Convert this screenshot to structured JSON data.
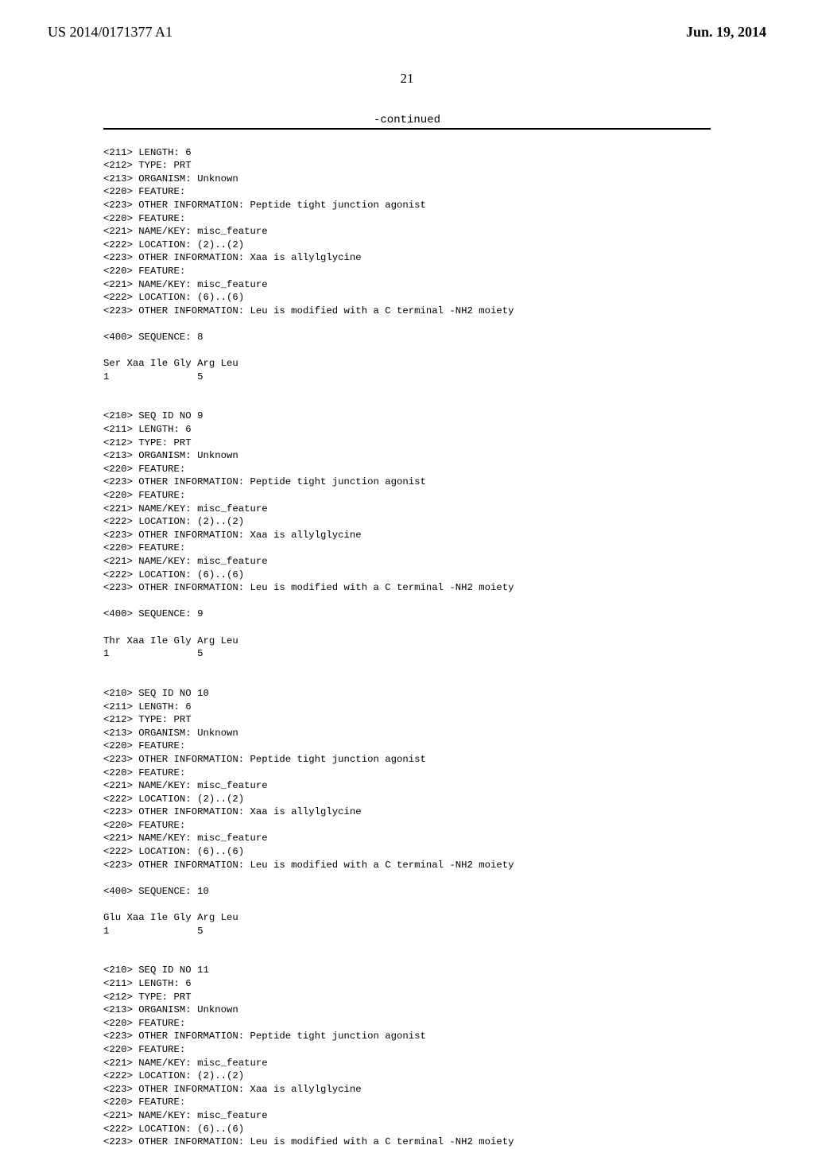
{
  "header": {
    "pub_number": "US 2014/0171377 A1",
    "pub_date": "Jun. 19, 2014",
    "page_number": "21"
  },
  "continued_label": "-continued",
  "seq8": {
    "l01": "<211> LENGTH: 6",
    "l02": "<212> TYPE: PRT",
    "l03": "<213> ORGANISM: Unknown",
    "l04": "<220> FEATURE:",
    "l05": "<223> OTHER INFORMATION: Peptide tight junction agonist",
    "l06": "<220> FEATURE:",
    "l07": "<221> NAME/KEY: misc_feature",
    "l08": "<222> LOCATION: (2)..(2)",
    "l09": "<223> OTHER INFORMATION: Xaa is allylglycine",
    "l10": "<220> FEATURE:",
    "l11": "<221> NAME/KEY: misc_feature",
    "l12": "<222> LOCATION: (6)..(6)",
    "l13": "<223> OTHER INFORMATION: Leu is modified with a C terminal -NH2 moiety",
    "l14": "<400> SEQUENCE: 8",
    "seq_line": "Ser Xaa Ile Gly Arg Leu",
    "num_line": "1               5"
  },
  "seq9": {
    "l00": "<210> SEQ ID NO 9",
    "l01": "<211> LENGTH: 6",
    "l02": "<212> TYPE: PRT",
    "l03": "<213> ORGANISM: Unknown",
    "l04": "<220> FEATURE:",
    "l05": "<223> OTHER INFORMATION: Peptide tight junction agonist",
    "l06": "<220> FEATURE:",
    "l07": "<221> NAME/KEY: misc_feature",
    "l08": "<222> LOCATION: (2)..(2)",
    "l09": "<223> OTHER INFORMATION: Xaa is allylglycine",
    "l10": "<220> FEATURE:",
    "l11": "<221> NAME/KEY: misc_feature",
    "l12": "<222> LOCATION: (6)..(6)",
    "l13": "<223> OTHER INFORMATION: Leu is modified with a C terminal -NH2 moiety",
    "l14": "<400> SEQUENCE: 9",
    "seq_line": "Thr Xaa Ile Gly Arg Leu",
    "num_line": "1               5"
  },
  "seq10": {
    "l00": "<210> SEQ ID NO 10",
    "l01": "<211> LENGTH: 6",
    "l02": "<212> TYPE: PRT",
    "l03": "<213> ORGANISM: Unknown",
    "l04": "<220> FEATURE:",
    "l05": "<223> OTHER INFORMATION: Peptide tight junction agonist",
    "l06": "<220> FEATURE:",
    "l07": "<221> NAME/KEY: misc_feature",
    "l08": "<222> LOCATION: (2)..(2)",
    "l09": "<223> OTHER INFORMATION: Xaa is allylglycine",
    "l10": "<220> FEATURE:",
    "l11": "<221> NAME/KEY: misc_feature",
    "l12": "<222> LOCATION: (6)..(6)",
    "l13": "<223> OTHER INFORMATION: Leu is modified with a C terminal -NH2 moiety",
    "l14": "<400> SEQUENCE: 10",
    "seq_line": "Glu Xaa Ile Gly Arg Leu",
    "num_line": "1               5"
  },
  "seq11": {
    "l00": "<210> SEQ ID NO 11",
    "l01": "<211> LENGTH: 6",
    "l02": "<212> TYPE: PRT",
    "l03": "<213> ORGANISM: Unknown",
    "l04": "<220> FEATURE:",
    "l05": "<223> OTHER INFORMATION: Peptide tight junction agonist",
    "l06": "<220> FEATURE:",
    "l07": "<221> NAME/KEY: misc_feature",
    "l08": "<222> LOCATION: (2)..(2)",
    "l09": "<223> OTHER INFORMATION: Xaa is allylglycine",
    "l10": "<220> FEATURE:",
    "l11": "<221> NAME/KEY: misc_feature",
    "l12": "<222> LOCATION: (6)..(6)",
    "l13": "<223> OTHER INFORMATION: Leu is modified with a C terminal -NH2 moiety"
  }
}
